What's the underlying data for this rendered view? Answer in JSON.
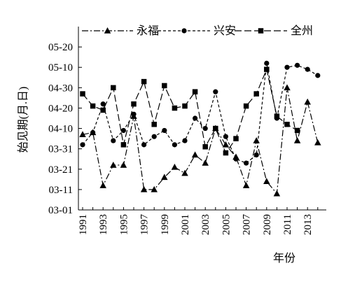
{
  "chart_data": {
    "type": "line",
    "ylabel": "始见期(月.日)",
    "xlabel": "年份",
    "x": [
      1991,
      1992,
      1993,
      1994,
      1995,
      1996,
      1997,
      1998,
      1999,
      2000,
      2001,
      2002,
      2003,
      2004,
      2005,
      2006,
      2007,
      2008,
      2009,
      2010,
      2011,
      2012,
      2013,
      2014
    ],
    "x_tick_labels": [
      "1991",
      "1993",
      "1995",
      "1997",
      "1999",
      "2001",
      "2003",
      "2005",
      "2007",
      "2009",
      "2011",
      "2013"
    ],
    "y_tick_labels": [
      "03-01",
      "03-11",
      "03-21",
      "03-31",
      "04-10",
      "04-20",
      "04-30",
      "05-10",
      "05-20"
    ],
    "ylim": [
      "03-01",
      "05-20"
    ],
    "legend_position": "top",
    "series": [
      {
        "name": "永福",
        "marker": "triangle",
        "line_style": "dash-dot",
        "values": [
          "04-07",
          "04-08",
          "03-13",
          "03-23",
          "03-23",
          "04-16",
          "03-11",
          "03-11",
          "03-17",
          "03-22",
          "03-19",
          "03-28",
          "03-24",
          "04-10",
          "04-02",
          "03-27",
          "03-13",
          "04-04",
          "03-15",
          "03-09",
          "04-30",
          "04-04",
          "04-23",
          "04-03"
        ]
      },
      {
        "name": "兴安",
        "marker": "circle",
        "line_style": "dashed",
        "values": [
          "04-02",
          "04-08",
          "04-22",
          "04-04",
          "04-09",
          "04-17",
          "04-02",
          "04-06",
          "04-09",
          "04-02",
          "04-04",
          "04-15",
          "04-10",
          "04-28",
          "04-06",
          "03-26",
          "03-24",
          "03-28",
          "05-12",
          "04-15",
          "05-10",
          "05-11",
          "05-09",
          "05-06"
        ]
      },
      {
        "name": "全州",
        "marker": "square",
        "line_style": "long-dash",
        "values": [
          "04-27",
          "04-21",
          "04-19",
          "04-30",
          "04-02",
          "04-22",
          "05-03",
          "04-12",
          "05-01",
          "04-20",
          "04-21",
          "04-28",
          "04-01",
          "04-10",
          "03-29",
          "04-05",
          "04-21",
          "04-27",
          "05-09",
          "04-16",
          "04-12",
          "04-09",
          "",
          ""
        ]
      }
    ]
  }
}
